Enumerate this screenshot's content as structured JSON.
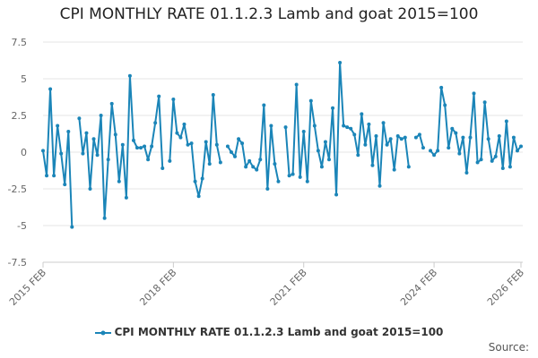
{
  "chart_data": {
    "type": "line",
    "title": "CPI MONTHLY RATE 01.1.2.3 Lamb and goat 2015=100",
    "xlabel": "",
    "ylabel": "",
    "ylim": [
      -7.5,
      7.5
    ],
    "yticks": [
      -7.5,
      -5,
      -2.5,
      0,
      2.5,
      5,
      7.5
    ],
    "ytick_labels": [
      "-7.5",
      "-5",
      "-2.5",
      "0",
      "2.5",
      "5",
      "7.5"
    ],
    "xticks": [
      {
        "label": "2015 FEB",
        "index": 0
      },
      {
        "label": "2018 FEB",
        "index": 36
      },
      {
        "label": "2021 FEB",
        "index": 72
      },
      {
        "label": "2024 FEB",
        "index": 108
      },
      {
        "label": "2026 FEB",
        "index": 132
      }
    ],
    "grid": "horizontal",
    "legend_position": "bottom",
    "series": [
      {
        "name": "CPI MONTHLY RATE 01.1.2.3 Lamb and goat 2015=100",
        "color": "#1b85b8",
        "values": [
          0.1,
          -1.6,
          4.3,
          -1.6,
          1.8,
          -0.1,
          -2.2,
          1.4,
          -5.1,
          null,
          2.3,
          -0.1,
          1.3,
          -2.5,
          0.9,
          -0.2,
          2.5,
          -4.5,
          -0.5,
          3.3,
          1.2,
          -2.0,
          0.5,
          -3.1,
          5.2,
          0.8,
          0.3,
          0.3,
          0.4,
          -0.5,
          0.4,
          2.0,
          3.8,
          -1.1,
          null,
          -0.6,
          3.6,
          1.3,
          1.0,
          1.9,
          0.5,
          0.6,
          -2.0,
          -3.0,
          -1.8,
          0.7,
          -0.8,
          3.9,
          0.5,
          -0.7,
          null,
          0.4,
          0.0,
          -0.3,
          0.9,
          0.6,
          -1.0,
          -0.6,
          -1.0,
          -1.2,
          -0.5,
          3.2,
          -2.5,
          1.8,
          -0.8,
          -2.0,
          null,
          1.7,
          -1.6,
          -1.5,
          4.6,
          -1.7,
          1.4,
          -2.0,
          3.5,
          1.8,
          0.1,
          -1.0,
          0.7,
          -0.5,
          3.0,
          -2.9,
          6.1,
          1.8,
          1.7,
          1.6,
          1.2,
          -0.2,
          2.6,
          0.5,
          1.9,
          -0.9,
          1.1,
          -2.3,
          2.0,
          0.5,
          0.9,
          -1.2,
          1.1,
          0.9,
          1.0,
          -1.0,
          null,
          1.0,
          1.2,
          0.3,
          null,
          0.1,
          -0.2,
          0.1,
          4.4,
          3.2,
          0.3,
          1.6,
          1.3,
          -0.1,
          1.0,
          -1.4,
          1.0,
          4.0,
          -0.7,
          -0.5,
          3.4,
          0.9,
          -0.6,
          -0.3,
          1.1,
          -1.1,
          2.1,
          -1.0,
          1.0,
          0.1,
          0.4
        ]
      }
    ]
  },
  "source_label": "Source:"
}
